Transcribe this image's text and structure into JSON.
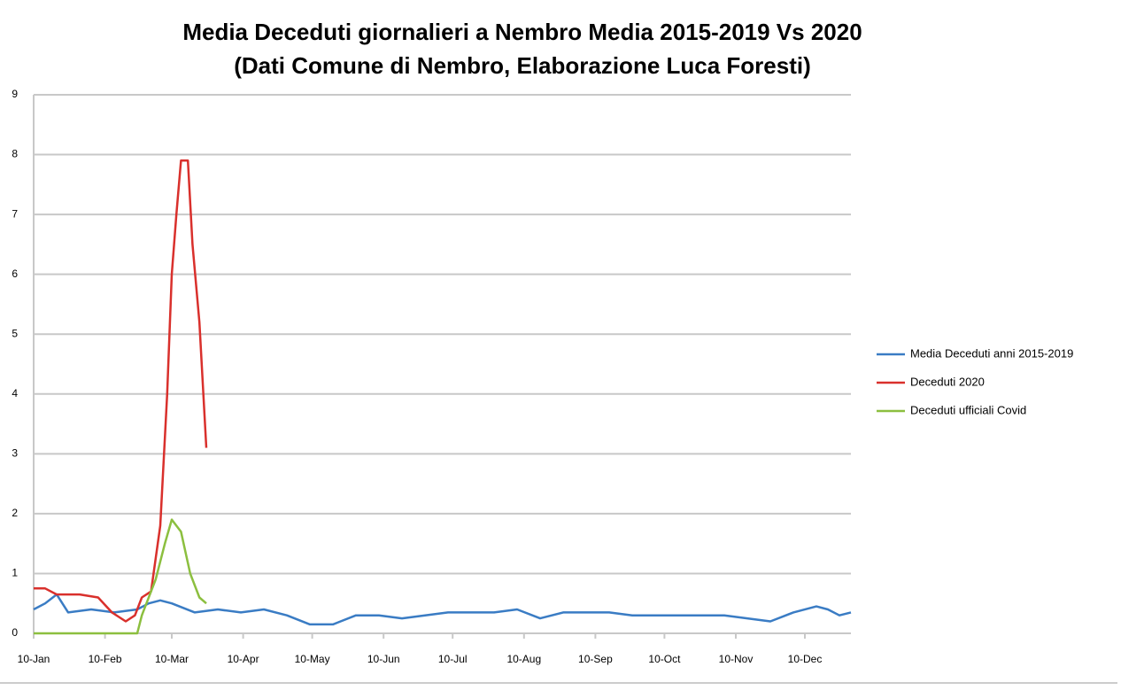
{
  "chart_data": {
    "type": "line",
    "title": "Media Deceduti giornalieri a Nembro Media 2015-2019 Vs 2020",
    "subtitle": "(Dati Comune di Nembro, Elaborazione Luca Foresti)",
    "xlim": [
      10,
      365
    ],
    "xticks": [
      {
        "value": 10,
        "label": "10-Jan"
      },
      {
        "value": 41,
        "label": "10-Feb"
      },
      {
        "value": 70,
        "label": "10-Mar"
      },
      {
        "value": 101,
        "label": "10-Apr"
      },
      {
        "value": 131,
        "label": "10-May"
      },
      {
        "value": 162,
        "label": "10-Jun"
      },
      {
        "value": 192,
        "label": "10-Jul"
      },
      {
        "value": 223,
        "label": "10-Aug"
      },
      {
        "value": 254,
        "label": "10-Sep"
      },
      {
        "value": 284,
        "label": "10-Oct"
      },
      {
        "value": 315,
        "label": "10-Nov"
      },
      {
        "value": 345,
        "label": "10-Dec"
      }
    ],
    "ylim": [
      0,
      9
    ],
    "yticks": [
      0,
      1,
      2,
      3,
      4,
      5,
      6,
      7,
      8,
      9
    ],
    "grid": true,
    "legend": "right",
    "series": [
      {
        "name": "Media Deceduti anni 2015-2019",
        "color": "#3a7cc4",
        "x": [
          10,
          15,
          20,
          25,
          35,
          45,
          55,
          60,
          65,
          70,
          80,
          90,
          100,
          110,
          120,
          130,
          140,
          150,
          160,
          170,
          180,
          190,
          200,
          210,
          220,
          230,
          240,
          250,
          260,
          270,
          280,
          290,
          300,
          310,
          320,
          330,
          340,
          350,
          355,
          360,
          365
        ],
        "values": [
          0.4,
          0.5,
          0.65,
          0.35,
          0.4,
          0.35,
          0.4,
          0.5,
          0.55,
          0.5,
          0.35,
          0.4,
          0.35,
          0.4,
          0.3,
          0.15,
          0.15,
          0.3,
          0.3,
          0.25,
          0.3,
          0.35,
          0.35,
          0.35,
          0.4,
          0.25,
          0.35,
          0.35,
          0.35,
          0.3,
          0.3,
          0.3,
          0.3,
          0.3,
          0.25,
          0.2,
          0.35,
          0.45,
          0.4,
          0.3,
          0.35
        ]
      },
      {
        "name": "Deceduti 2020",
        "color": "#d9302c",
        "x": [
          10,
          15,
          20,
          30,
          38,
          44,
          50,
          54,
          57,
          61,
          65,
          68,
          70,
          72,
          74,
          77,
          79,
          82,
          85
        ],
        "values": [
          0.75,
          0.75,
          0.65,
          0.65,
          0.6,
          0.35,
          0.2,
          0.3,
          0.6,
          0.7,
          1.8,
          4,
          6,
          7,
          7.9,
          7.9,
          6.5,
          5.2,
          3.1
        ]
      },
      {
        "name": "Deceduti ufficiali Covid",
        "color": "#8cbf3f",
        "x": [
          10,
          55,
          57,
          63,
          67,
          70,
          74,
          78,
          82,
          85
        ],
        "values": [
          0,
          0,
          0.3,
          0.9,
          1.5,
          1.9,
          1.7,
          1.0,
          0.6,
          0.5
        ]
      }
    ]
  }
}
